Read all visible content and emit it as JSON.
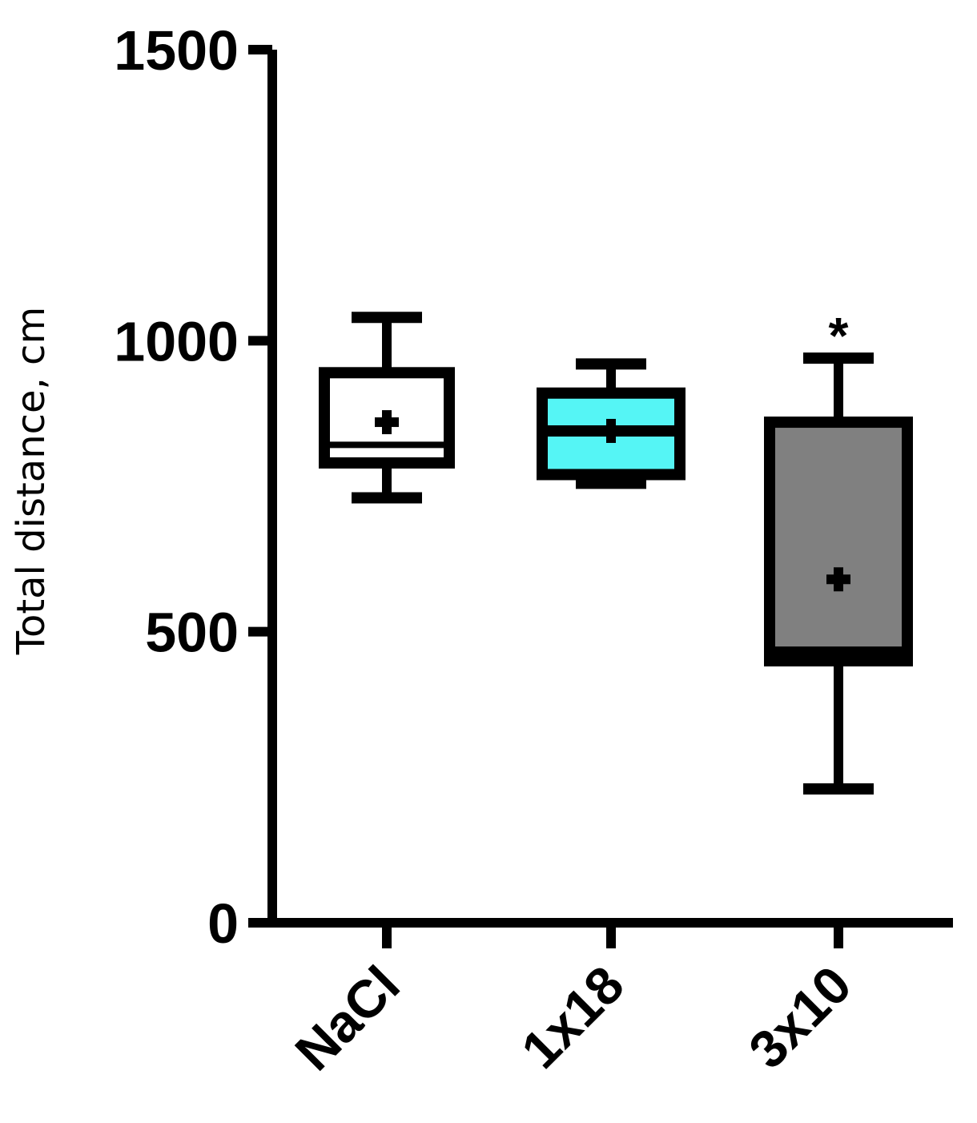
{
  "chart_data": {
    "type": "box",
    "title": "",
    "xlabel": "",
    "ylabel": "Total distance, cm",
    "ylim": [
      0,
      1500
    ],
    "yticks": [
      0,
      500,
      1000,
      1500
    ],
    "grid": false,
    "categories": [
      "NaCl",
      "1x18",
      "3x10"
    ],
    "boxes": [
      {
        "category": "NaCl",
        "min": 730,
        "q1": 790,
        "median": 810,
        "q3": 945,
        "max": 1040,
        "mean": 860,
        "fill": "#ffffff",
        "median_color": "#ffffff",
        "annotation": ""
      },
      {
        "category": "1x18",
        "min": 755,
        "q1": 770,
        "median": 845,
        "q3": 910,
        "max": 960,
        "mean": 845,
        "fill": "#55f5f5",
        "median_color": "#000000",
        "annotation": ""
      },
      {
        "category": "3x10",
        "min": 230,
        "q1": 450,
        "median": 465,
        "q3": 860,
        "max": 970,
        "mean": 590,
        "fill": "#808080",
        "median_color": "#000000",
        "annotation": "*"
      }
    ],
    "colors": {
      "axis": "#000000",
      "nacl_fill": "#ffffff",
      "g1x18_fill": "#55f5f5",
      "g3x10_fill": "#808080"
    }
  }
}
